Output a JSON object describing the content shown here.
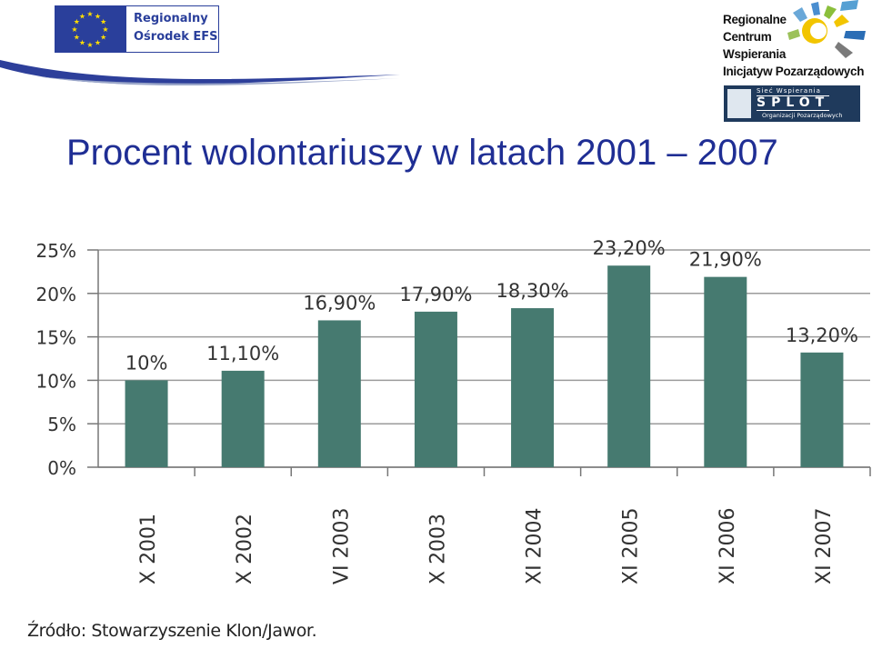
{
  "header": {
    "eu_logo": {
      "line1": "Regionalny",
      "line2": "Ośrodek EFS"
    },
    "rc_logo": {
      "lines": [
        "Regionalne",
        "Centrum",
        "Wspierania",
        "Inicjatyw Pozarządowych"
      ]
    },
    "splot_logo": {
      "line1": "Sieć Wspierania",
      "line2": "SPLOT",
      "line3": "Organizacji Pozarządowych"
    }
  },
  "title": "Procent wolontariuszy w latach 2001 – 2007",
  "source": "Źródło: Stowarzyszenie Klon/Jawor.",
  "colors": {
    "bar": "#467a70",
    "title": "#1f2e94",
    "eu_blue": "#2a3f9b"
  },
  "chart_data": {
    "type": "bar",
    "title": "",
    "xlabel": "",
    "ylabel": "",
    "categories": [
      "X 2001",
      "X 2002",
      "VI 2003",
      "X 2003",
      "XI 2004",
      "XI 2005",
      "XI 2006",
      "XI 2007"
    ],
    "values": [
      10,
      11.1,
      16.9,
      17.9,
      18.3,
      23.2,
      21.9,
      13.2
    ],
    "data_labels": [
      "10%",
      "11,10%",
      "16,90%",
      "17,90%",
      "18,30%",
      "23,20%",
      "21,90%",
      "13,20%"
    ],
    "yticks": [
      "0%",
      "5%",
      "10%",
      "15%",
      "20%",
      "25%"
    ],
    "ylim": [
      0,
      25
    ],
    "grid": true,
    "legend": "none"
  }
}
